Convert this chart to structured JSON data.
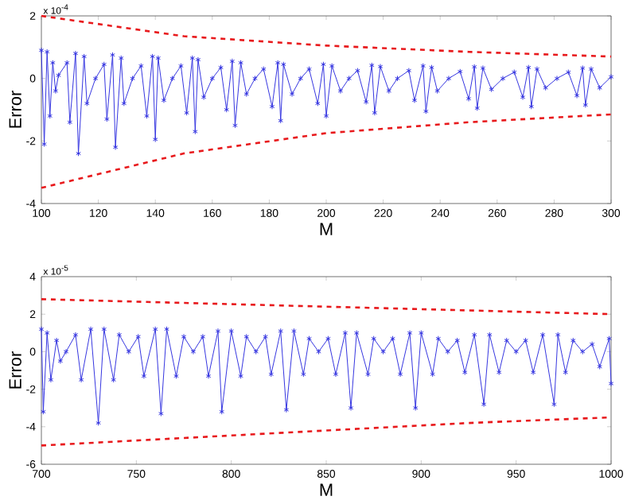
{
  "chart_data": [
    {
      "type": "line",
      "xlabel": "M",
      "ylabel": "Error",
      "annotations": [
        "x 10$^{-4}$"
      ],
      "xlim": [
        100,
        300
      ],
      "ylim": [
        -4,
        2
      ],
      "xticks": [
        100,
        120,
        140,
        160,
        180,
        200,
        220,
        240,
        260,
        280,
        300
      ],
      "yticks": [
        -4,
        -2,
        0,
        2
      ],
      "series": [
        {
          "color": "#3535e0",
          "marker": "cross",
          "line_style": "solid",
          "x": [
            100,
            101,
            102,
            103,
            104,
            105,
            106,
            109,
            110,
            112,
            113,
            115,
            116,
            119,
            122,
            123,
            125,
            126,
            128,
            129,
            132,
            135,
            137,
            139,
            140,
            141,
            143,
            146,
            149,
            151,
            153,
            154,
            155,
            157,
            160,
            163,
            165,
            167,
            168,
            170,
            172,
            175,
            178,
            181,
            183,
            184,
            185,
            188,
            191,
            194,
            197,
            199,
            200,
            202,
            205,
            208,
            211,
            214,
            216,
            217,
            219,
            222,
            225,
            229,
            231,
            234,
            235,
            237,
            239,
            243,
            247,
            250,
            252,
            253,
            255,
            258,
            262,
            266,
            269,
            271,
            272,
            274,
            277,
            281,
            285,
            288,
            290,
            291,
            293,
            296,
            300
          ],
          "values": [
            0.9,
            -2.1,
            0.85,
            -1.2,
            0.5,
            -0.4,
            0.1,
            0.5,
            -1.4,
            0.8,
            -2.4,
            0.7,
            -0.8,
            0.0,
            0.45,
            -1.3,
            0.75,
            -2.2,
            0.65,
            -0.8,
            0.0,
            0.4,
            -1.2,
            0.7,
            -1.95,
            0.65,
            -0.7,
            0.0,
            0.4,
            -1.1,
            0.65,
            -1.7,
            0.6,
            -0.6,
            0.0,
            0.35,
            -1.0,
            0.55,
            -1.5,
            0.5,
            -0.5,
            0.0,
            0.3,
            -0.9,
            0.5,
            -1.35,
            0.45,
            -0.5,
            0.0,
            0.3,
            -0.8,
            0.45,
            -1.2,
            0.4,
            -0.4,
            0.0,
            0.25,
            -0.75,
            0.42,
            -1.1,
            0.38,
            -0.4,
            0.0,
            0.25,
            -0.7,
            0.4,
            -1.05,
            0.35,
            -0.4,
            0.0,
            0.22,
            -0.65,
            0.37,
            -0.95,
            0.33,
            -0.35,
            0.0,
            0.2,
            -0.6,
            0.35,
            -0.9,
            0.3,
            -0.3,
            0.0,
            0.2,
            -0.55,
            0.33,
            -0.85,
            0.3,
            -0.3,
            0.05
          ]
        },
        {
          "color": "#e8191c",
          "marker": "none",
          "line_style": "dashed",
          "x": [
            100,
            150,
            200,
            250,
            300
          ],
          "values": [
            2.0,
            1.35,
            1.05,
            0.85,
            0.7
          ]
        },
        {
          "color": "#e8191c",
          "marker": "none",
          "line_style": "dashed",
          "x": [
            100,
            150,
            200,
            250,
            300
          ],
          "values": [
            -3.5,
            -2.4,
            -1.75,
            -1.4,
            -1.15
          ]
        }
      ]
    },
    {
      "type": "line",
      "xlabel": "M",
      "ylabel": "Error",
      "annotations": [
        "x 10$^{-5}$"
      ],
      "xlim": [
        700,
        1000
      ],
      "ylim": [
        -6,
        4
      ],
      "xticks": [
        700,
        750,
        800,
        850,
        900,
        950,
        1000
      ],
      "yticks": [
        -6,
        -4,
        -2,
        0,
        2,
        4
      ],
      "series": [
        {
          "color": "#3535e0",
          "marker": "cross",
          "line_style": "solid",
          "x": [
            700,
            701,
            703,
            705,
            708,
            710,
            713,
            718,
            721,
            726,
            730,
            733,
            738,
            741,
            746,
            751,
            754,
            760,
            763,
            766,
            771,
            775,
            780,
            785,
            788,
            793,
            795,
            800,
            805,
            808,
            813,
            818,
            821,
            826,
            829,
            833,
            838,
            841,
            846,
            851,
            855,
            860,
            863,
            866,
            872,
            875,
            880,
            885,
            889,
            894,
            897,
            900,
            906,
            909,
            914,
            919,
            923,
            928,
            933,
            936,
            941,
            945,
            950,
            955,
            959,
            964,
            970,
            972,
            976,
            980,
            985,
            990,
            994,
            999,
            1000
          ],
          "values": [
            1.2,
            -3.2,
            1.0,
            -1.5,
            0.6,
            -0.5,
            0.0,
            0.9,
            -1.5,
            1.2,
            -3.8,
            1.2,
            -1.5,
            0.9,
            0.0,
            0.8,
            -1.3,
            1.2,
            -3.3,
            1.2,
            -1.3,
            0.8,
            0.0,
            0.8,
            -1.3,
            1.1,
            -3.2,
            1.1,
            -1.3,
            0.8,
            0.0,
            0.8,
            -1.2,
            1.1,
            -3.1,
            1.1,
            -1.2,
            0.7,
            0.0,
            0.7,
            -1.2,
            1.0,
            -3.0,
            1.0,
            -1.2,
            0.7,
            0.0,
            0.7,
            -1.2,
            1.0,
            -3.0,
            1.0,
            -1.2,
            0.7,
            0.0,
            0.6,
            -1.1,
            0.9,
            -2.8,
            0.9,
            -1.1,
            0.6,
            0.0,
            0.6,
            -1.1,
            0.9,
            -2.8,
            0.9,
            -1.1,
            0.6,
            0.0,
            0.4,
            -0.8,
            0.7,
            -1.7
          ]
        },
        {
          "color": "#e8191c",
          "marker": "none",
          "line_style": "dashed",
          "x": [
            700,
            775,
            850,
            925,
            1000
          ],
          "values": [
            2.8,
            2.6,
            2.4,
            2.2,
            2.0
          ]
        },
        {
          "color": "#e8191c",
          "marker": "none",
          "line_style": "dashed",
          "x": [
            700,
            775,
            850,
            925,
            1000
          ],
          "values": [
            -5.0,
            -4.6,
            -4.2,
            -3.8,
            -3.5
          ]
        }
      ]
    }
  ]
}
